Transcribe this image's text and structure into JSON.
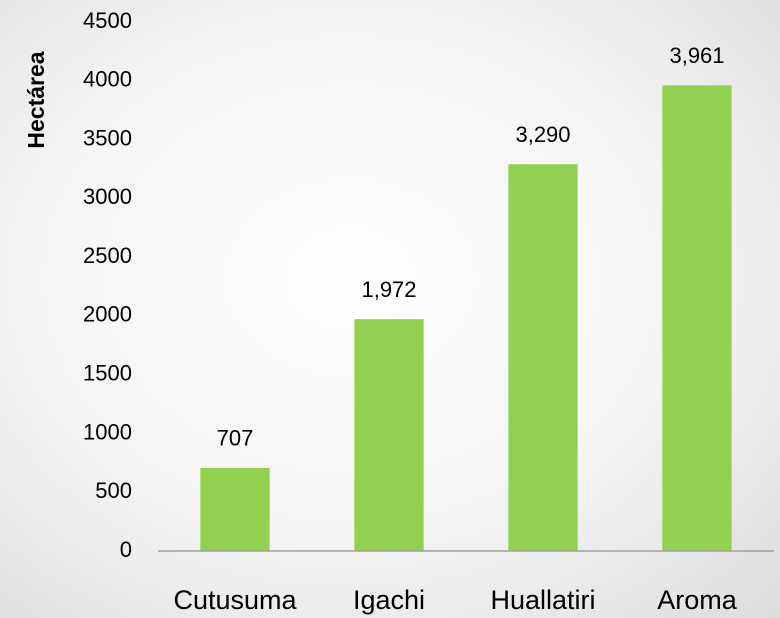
{
  "chart_data": {
    "type": "bar",
    "y_label": "Hectárea",
    "categories": [
      "Cutusuma",
      "Igachi",
      "Huallatiri",
      "Aroma"
    ],
    "values": [
      707,
      1972,
      3290,
      3961
    ],
    "value_labels": [
      "707",
      "1,972",
      "3,290",
      "3,961"
    ],
    "color": "#92d050",
    "ylim": [
      0,
      4500
    ],
    "yticks": [
      0,
      500,
      1000,
      1500,
      2000,
      2500,
      3000,
      3500,
      4000,
      4500
    ],
    "grid": false
  }
}
